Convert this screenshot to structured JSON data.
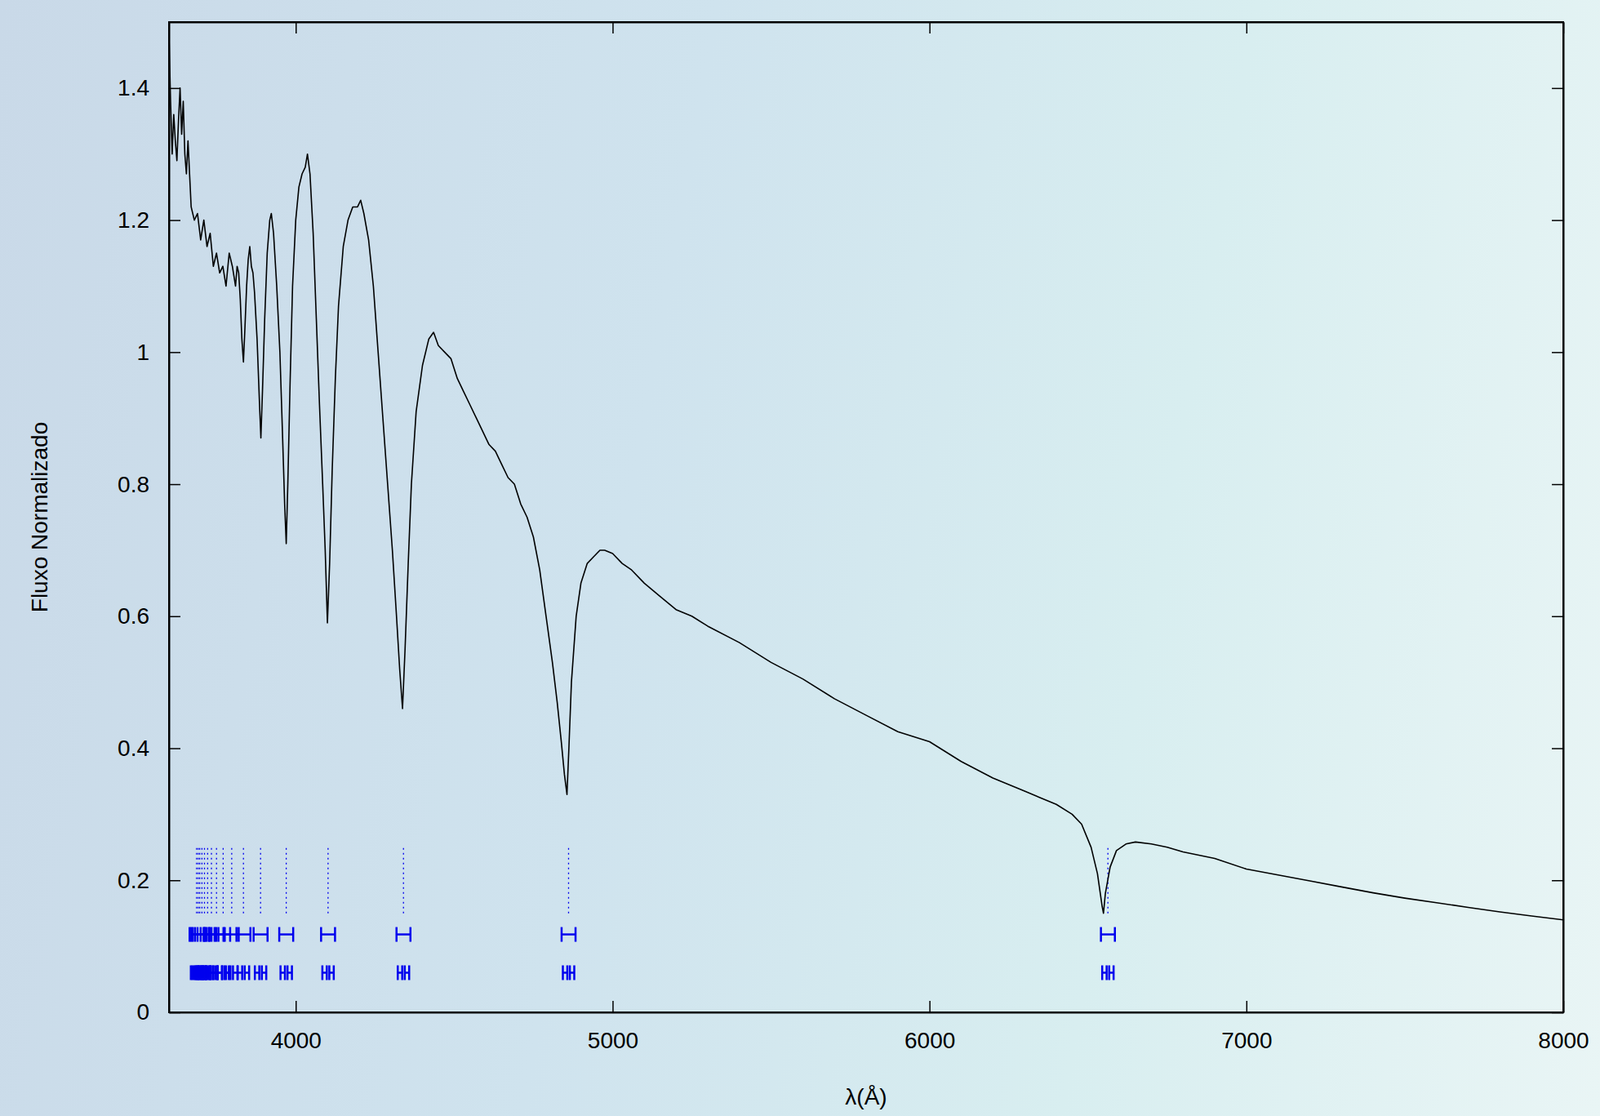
{
  "chart_data": {
    "type": "line",
    "xlabel": "λ(Å)",
    "ylabel": "Fluxo Normalizado",
    "color": "#000000",
    "xlim": [
      3600,
      8000
    ],
    "ylim": [
      0,
      1.5
    ],
    "xticks": [
      4000,
      5000,
      6000,
      7000,
      8000
    ],
    "yticks": [
      0,
      0.2,
      0.4,
      0.6,
      0.8,
      1,
      1.2,
      1.4
    ],
    "grid": false,
    "x": [
      3600,
      3605,
      3610,
      3615,
      3620,
      3625,
      3630,
      3635,
      3640,
      3645,
      3650,
      3655,
      3660,
      3670,
      3680,
      3690,
      3700,
      3710,
      3720,
      3730,
      3740,
      3750,
      3760,
      3770,
      3780,
      3790,
      3800,
      3810,
      3815,
      3820,
      3825,
      3830,
      3835,
      3840,
      3845,
      3850,
      3855,
      3860,
      3865,
      3870,
      3878,
      3885,
      3890,
      3895,
      3902,
      3910,
      3918,
      3923,
      3930,
      3940,
      3950,
      3958,
      3965,
      3970,
      3975,
      3982,
      3990,
      4000,
      4010,
      4020,
      4030,
      4037,
      4045,
      4055,
      4065,
      4075,
      4085,
      4093,
      4100,
      4107,
      4115,
      4125,
      4135,
      4150,
      4165,
      4180,
      4195,
      4205,
      4215,
      4230,
      4245,
      4260,
      4275,
      4290,
      4305,
      4318,
      4328,
      4337,
      4345,
      4355,
      4365,
      4380,
      4400,
      4420,
      4435,
      4450,
      4470,
      4490,
      4510,
      4530,
      4550,
      4570,
      4590,
      4610,
      4630,
      4650,
      4670,
      4690,
      4710,
      4730,
      4750,
      4770,
      4790,
      4810,
      4825,
      4838,
      4848,
      4856,
      4862,
      4870,
      4885,
      4900,
      4920,
      4940,
      4960,
      4975,
      5000,
      5030,
      5060,
      5100,
      5150,
      5200,
      5250,
      5300,
      5400,
      5500,
      5600,
      5700,
      5800,
      5900,
      6000,
      6100,
      6200,
      6300,
      6400,
      6450,
      6480,
      6510,
      6530,
      6545,
      6549,
      6555,
      6570,
      6590,
      6620,
      6650,
      6700,
      6750,
      6800,
      6900,
      7000,
      7100,
      7200,
      7300,
      7400,
      7500,
      7600,
      7700,
      7800,
      7900,
      8000
    ],
    "values": [
      1.48,
      1.38,
      1.3,
      1.36,
      1.32,
      1.29,
      1.35,
      1.4,
      1.33,
      1.38,
      1.3,
      1.27,
      1.32,
      1.22,
      1.2,
      1.21,
      1.17,
      1.2,
      1.16,
      1.18,
      1.13,
      1.15,
      1.12,
      1.13,
      1.1,
      1.15,
      1.13,
      1.1,
      1.13,
      1.12,
      1.08,
      1.02,
      0.985,
      1.04,
      1.1,
      1.14,
      1.16,
      1.13,
      1.12,
      1.09,
      1.02,
      0.93,
      0.87,
      0.94,
      1.05,
      1.15,
      1.2,
      1.21,
      1.18,
      1.1,
      1.0,
      0.88,
      0.77,
      0.71,
      0.8,
      0.95,
      1.1,
      1.2,
      1.25,
      1.27,
      1.28,
      1.3,
      1.27,
      1.18,
      1.05,
      0.92,
      0.8,
      0.7,
      0.59,
      0.68,
      0.82,
      0.96,
      1.07,
      1.16,
      1.2,
      1.22,
      1.22,
      1.23,
      1.21,
      1.17,
      1.1,
      1.0,
      0.9,
      0.8,
      0.7,
      0.6,
      0.52,
      0.46,
      0.55,
      0.68,
      0.8,
      0.91,
      0.98,
      1.02,
      1.03,
      1.01,
      1.0,
      0.99,
      0.96,
      0.94,
      0.92,
      0.9,
      0.88,
      0.86,
      0.85,
      0.83,
      0.81,
      0.8,
      0.77,
      0.75,
      0.72,
      0.67,
      0.6,
      0.53,
      0.47,
      0.41,
      0.36,
      0.33,
      0.4,
      0.5,
      0.6,
      0.65,
      0.68,
      0.69,
      0.7,
      0.7,
      0.695,
      0.68,
      0.67,
      0.65,
      0.63,
      0.61,
      0.6,
      0.585,
      0.56,
      0.53,
      0.505,
      0.475,
      0.45,
      0.425,
      0.41,
      0.38,
      0.355,
      0.335,
      0.315,
      0.3,
      0.285,
      0.25,
      0.21,
      0.16,
      0.15,
      0.18,
      0.22,
      0.245,
      0.255,
      0.258,
      0.255,
      0.25,
      0.243,
      0.233,
      0.217,
      0.208,
      0.199,
      0.19,
      0.181,
      0.173,
      0.166,
      0.159,
      0.152,
      0.146,
      0.14
    ],
    "line_marks": {
      "color": "#0000ee",
      "x": [
        6563,
        4861,
        4340,
        4102,
        3970,
        3889,
        3835,
        3798,
        3771,
        3750,
        3734,
        3722,
        3712,
        3704,
        3697,
        3692,
        3687
      ],
      "y_from": 0.15,
      "y_to": 0.25,
      "window_y": 0.118,
      "window_halfwidth": 22,
      "pair_y": 0.06,
      "pair_offset": 11,
      "pair_halfwidth": 7
    }
  }
}
